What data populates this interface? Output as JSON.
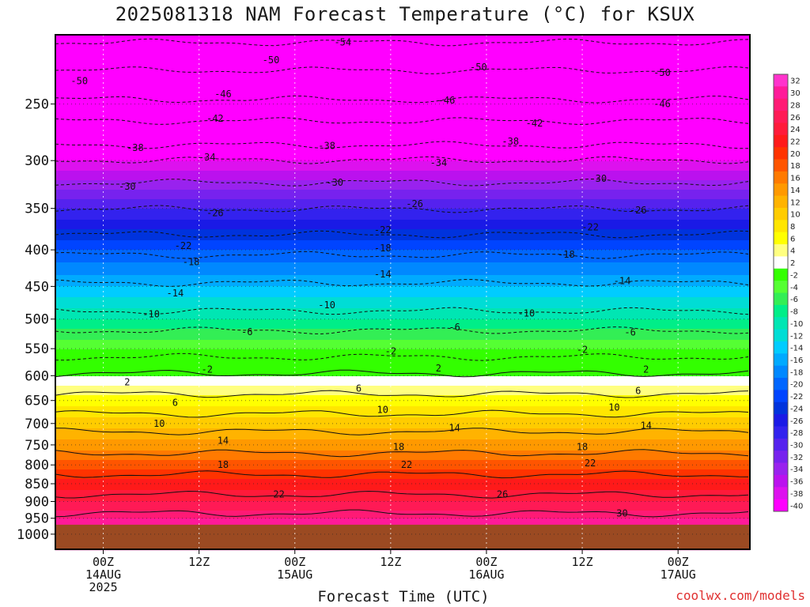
{
  "chart_data": {
    "type": "heatmap",
    "title": "2025081318 NAM Forecast Temperature (°C) for KSUX",
    "xlabel": "Forecast Time (UTC)",
    "ylabel": "",
    "credit": "coolwx.com/models",
    "y_scale": "log",
    "ylim": [
      1050,
      200
    ],
    "y_ticks": [
      250,
      300,
      350,
      400,
      450,
      500,
      550,
      600,
      650,
      700,
      750,
      800,
      850,
      900,
      950,
      1000
    ],
    "xlim": [
      "2025-08-13 18Z",
      "2025-08-17 09Z"
    ],
    "x_ticks": [
      {
        "time": "2025-08-14 00Z",
        "lines": [
          "00Z",
          "14AUG",
          "2025"
        ]
      },
      {
        "time": "2025-08-14 12Z",
        "lines": [
          "12Z"
        ]
      },
      {
        "time": "2025-08-15 00Z",
        "lines": [
          "00Z",
          "15AUG"
        ]
      },
      {
        "time": "2025-08-15 12Z",
        "lines": [
          "12Z"
        ]
      },
      {
        "time": "2025-08-16 00Z",
        "lines": [
          "00Z",
          "16AUG"
        ]
      },
      {
        "time": "2025-08-16 12Z",
        "lines": [
          "12Z"
        ]
      },
      {
        "time": "2025-08-17 00Z",
        "lines": [
          "00Z",
          "17AUG"
        ]
      }
    ],
    "grid": true,
    "surface_pressure": 970,
    "colorbar": {
      "labels": [
        "32",
        "30",
        "28",
        "26",
        "24",
        "22",
        "20",
        "18",
        "16",
        "14",
        "12",
        "10",
        "8",
        "6",
        "4",
        "2",
        "-2",
        "-4",
        "-6",
        "-8",
        "-10",
        "-12",
        "-14",
        "-16",
        "-18",
        "-20",
        "-22",
        "-24",
        "-26",
        "-28",
        "-30",
        "-32",
        "-34",
        "-36",
        "-38",
        "-40"
      ],
      "colors": [
        "#ff33cc",
        "#ff1a99",
        "#ff1a75",
        "#ff1a55",
        "#ff1a3a",
        "#ff1a1a",
        "#ff3300",
        "#ff5500",
        "#ff7a00",
        "#ff9900",
        "#ffb300",
        "#ffcc00",
        "#ffe600",
        "#ffff00",
        "#ffff80",
        "#ffffff",
        "#33ff00",
        "#55ff33",
        "#33ee55",
        "#00ee88",
        "#00e6b3",
        "#00ddd5",
        "#00ccff",
        "#00aaff",
        "#0088ff",
        "#0066ff",
        "#0044ff",
        "#0033dd",
        "#1a1ae6",
        "#3322ee",
        "#5522ee",
        "#7722ee",
        "#9922ee",
        "#bb11ee",
        "#dd11ee",
        "#ff00ff"
      ]
    },
    "profile_levels": [
      200,
      250,
      300,
      350,
      400,
      450,
      500,
      550,
      600,
      650,
      700,
      750,
      800,
      850,
      900,
      950,
      1000
    ],
    "profile_temps": [
      -56,
      -48,
      -38,
      -28,
      -20,
      -14,
      -8,
      -2,
      2,
      7,
      11,
      15,
      19,
      23,
      26,
      30,
      32
    ],
    "contours": [
      {
        "label": "-54",
        "at": [
          [
            "2025-08-15 06Z",
            205
          ]
        ],
        "negative": true
      },
      {
        "label": "-50",
        "at": [
          [
            "2025-08-13 21Z",
            232
          ],
          [
            "2025-08-14 21Z",
            217
          ],
          [
            "2025-08-15 23Z",
            222
          ],
          [
            "2025-08-16 22Z",
            226
          ]
        ],
        "negative": true
      },
      {
        "label": "-46",
        "at": [
          [
            "2025-08-14 15Z",
            242
          ],
          [
            "2025-08-15 19Z",
            247
          ],
          [
            "2025-08-16 22Z",
            250
          ]
        ],
        "negative": true
      },
      {
        "label": "-42",
        "at": [
          [
            "2025-08-14 14Z",
            262
          ],
          [
            "2025-08-16 06Z",
            266
          ]
        ],
        "negative": true
      },
      {
        "label": "-38",
        "at": [
          [
            "2025-08-14 04Z",
            288
          ],
          [
            "2025-08-15 04Z",
            286
          ],
          [
            "2025-08-16 03Z",
            282
          ]
        ],
        "negative": true
      },
      {
        "label": "-34",
        "at": [
          [
            "2025-08-14 13Z",
            297
          ],
          [
            "2025-08-15 18Z",
            302
          ]
        ],
        "negative": true
      },
      {
        "label": "-30",
        "at": [
          [
            "2025-08-14 03Z",
            326
          ],
          [
            "2025-08-15 05Z",
            322
          ],
          [
            "2025-08-16 14Z",
            318
          ]
        ],
        "negative": true
      },
      {
        "label": "-26",
        "at": [
          [
            "2025-08-14 14Z",
            355
          ],
          [
            "2025-08-15 15Z",
            345
          ],
          [
            "2025-08-16 19Z",
            352
          ]
        ],
        "negative": true
      },
      {
        "label": "-22",
        "at": [
          [
            "2025-08-14 10Z",
            395
          ],
          [
            "2025-08-15 11Z",
            375
          ],
          [
            "2025-08-16 13Z",
            372
          ]
        ],
        "negative": true
      },
      {
        "label": "-18",
        "at": [
          [
            "2025-08-14 11Z",
            416
          ],
          [
            "2025-08-15 11Z",
            398
          ],
          [
            "2025-08-16 10Z",
            406
          ]
        ],
        "negative": true
      },
      {
        "label": "-14",
        "at": [
          [
            "2025-08-14 09Z",
            460
          ],
          [
            "2025-08-15 11Z",
            433
          ],
          [
            "2025-08-16 17Z",
            442
          ]
        ],
        "negative": true
      },
      {
        "label": "-10",
        "at": [
          [
            "2025-08-14 06Z",
            492
          ],
          [
            "2025-08-15 04Z",
            478
          ],
          [
            "2025-08-16 05Z",
            491
          ]
        ],
        "negative": true
      },
      {
        "label": "-6",
        "at": [
          [
            "2025-08-14 18Z",
            521
          ],
          [
            "2025-08-15 20Z",
            513
          ],
          [
            "2025-08-16 18Z",
            522
          ]
        ],
        "negative": true
      },
      {
        "label": "-2",
        "at": [
          [
            "2025-08-14 13Z",
            588
          ],
          [
            "2025-08-15 12Z",
            555
          ],
          [
            "2025-08-16 12Z",
            552
          ]
        ],
        "negative": true
      },
      {
        "label": "2",
        "at": [
          [
            "2025-08-14 03Z",
            613
          ],
          [
            "2025-08-15 18Z",
            586
          ],
          [
            "2025-08-16 20Z",
            588
          ]
        ],
        "negative": false
      },
      {
        "label": "6",
        "at": [
          [
            "2025-08-14 09Z",
            655
          ],
          [
            "2025-08-15 08Z",
            625
          ],
          [
            "2025-08-16 19Z",
            630
          ]
        ],
        "negative": false
      },
      {
        "label": "10",
        "at": [
          [
            "2025-08-14 07Z",
            700
          ],
          [
            "2025-08-15 11Z",
            670
          ],
          [
            "2025-08-16 16Z",
            665
          ]
        ],
        "negative": false
      },
      {
        "label": "14",
        "at": [
          [
            "2025-08-14 15Z",
            740
          ],
          [
            "2025-08-15 20Z",
            710
          ],
          [
            "2025-08-16 20Z",
            705
          ]
        ],
        "negative": false
      },
      {
        "label": "18",
        "at": [
          [
            "2025-08-14 15Z",
            800
          ],
          [
            "2025-08-15 13Z",
            755
          ],
          [
            "2025-08-16 12Z",
            755
          ]
        ],
        "negative": false
      },
      {
        "label": "22",
        "at": [
          [
            "2025-08-14 22Z",
            880
          ],
          [
            "2025-08-15 14Z",
            800
          ],
          [
            "2025-08-16 13Z",
            795
          ]
        ],
        "negative": false
      },
      {
        "label": "26",
        "at": [
          [
            "2025-08-16 02Z",
            880
          ]
        ],
        "negative": false
      },
      {
        "label": "30",
        "at": [
          [
            "2025-08-16 17Z",
            935
          ]
        ],
        "negative": false
      }
    ]
  }
}
